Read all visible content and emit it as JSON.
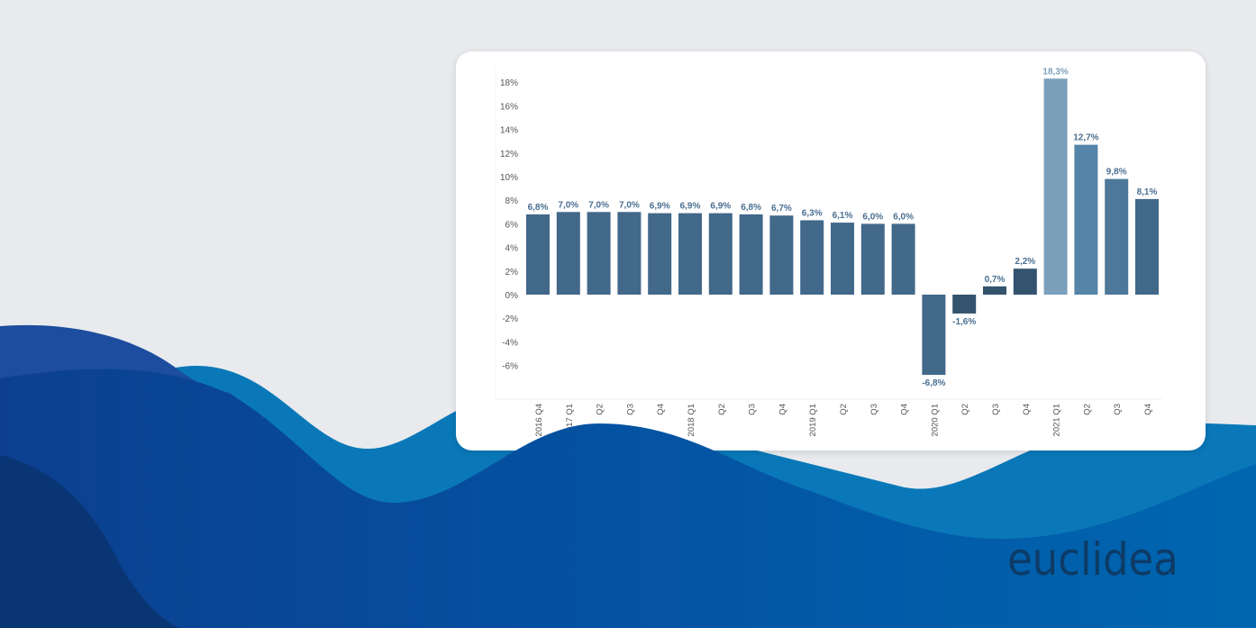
{
  "brand": {
    "logo_text": "euclidea"
  },
  "colors": {
    "bar_default": "#42688a",
    "bar_dark": "#34536f",
    "bar_light": "#7a9fbb",
    "bar_mid": "#5584a8",
    "bar_mid2": "#4d7899",
    "label": "#4a6f90"
  },
  "chart_data": {
    "type": "bar",
    "title": "",
    "xlabel": "",
    "ylabel": "",
    "ylim": [
      -8,
      19
    ],
    "yticks": [
      -6,
      -4,
      -2,
      0,
      2,
      4,
      6,
      8,
      10,
      12,
      14,
      16,
      18
    ],
    "ytick_labels": [
      "-6%",
      "-4%",
      "-2%",
      "0%",
      "2%",
      "4%",
      "6%",
      "8%",
      "10%",
      "12%",
      "14%",
      "16%",
      "18%"
    ],
    "categories": [
      "2016 Q4",
      "2017 Q1",
      "Q2",
      "Q3",
      "Q4",
      "2018 Q1",
      "Q2",
      "Q3",
      "Q4",
      "2019 Q1",
      "Q2",
      "Q3",
      "Q4",
      "2020 Q1",
      "Q2",
      "Q3",
      "Q4",
      "2021 Q1",
      "Q2",
      "Q3",
      "Q4"
    ],
    "values": [
      6.8,
      7.0,
      7.0,
      7.0,
      6.9,
      6.9,
      6.9,
      6.8,
      6.7,
      6.3,
      6.1,
      6.0,
      6.0,
      -6.8,
      -1.6,
      0.7,
      2.2,
      18.3,
      12.7,
      9.8,
      8.1
    ],
    "data_labels": [
      "6,8%",
      "7,0%",
      "7,0%",
      "7,0%",
      "6,9%",
      "6,9%",
      "6,9%",
      "6,8%",
      "6,7%",
      "6,3%",
      "6,1%",
      "6,0%",
      "6,0%",
      "-6,8%",
      "-1,6%",
      "0,7%",
      "2,2%",
      "18,3%",
      "12,7%",
      "9,8%",
      "8,1%"
    ],
    "bar_colors": [
      "#42688a",
      "#42688a",
      "#42688a",
      "#42688a",
      "#42688a",
      "#42688a",
      "#42688a",
      "#42688a",
      "#42688a",
      "#42688a",
      "#42688a",
      "#42688a",
      "#42688a",
      "#42688a",
      "#34536f",
      "#34536f",
      "#34536f",
      "#7a9fbb",
      "#5584a8",
      "#4d7899",
      "#42688a"
    ],
    "grid": false,
    "legend": "none"
  }
}
